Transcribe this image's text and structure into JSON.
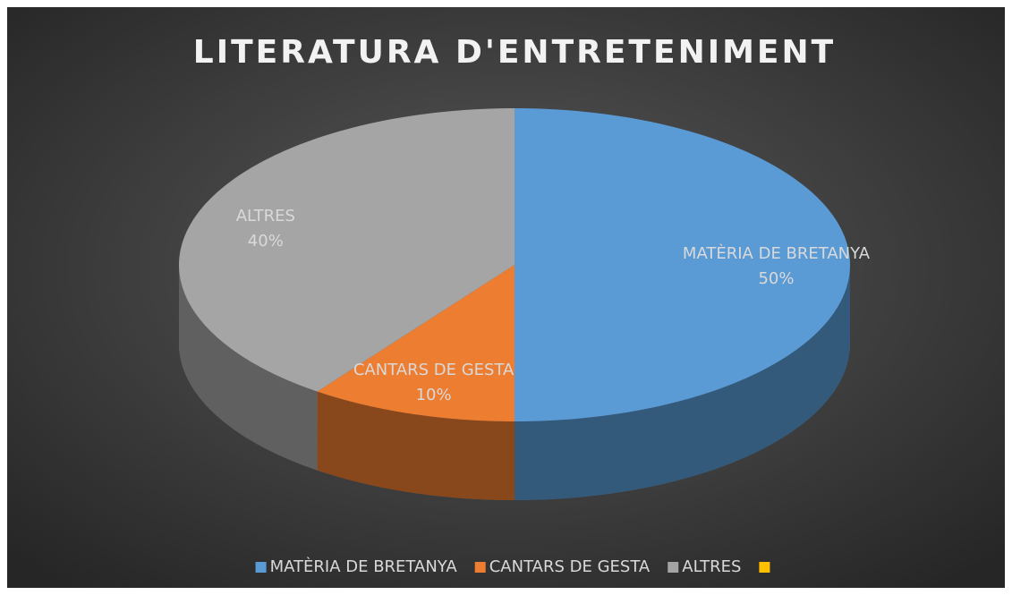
{
  "chart_data": {
    "type": "pie",
    "title": "LITERATURA D'ENTRETENIMENT",
    "categories": [
      "MATÈRIA DE BRETANYA",
      "CANTARS DE GESTA",
      "ALTRES",
      null
    ],
    "values": [
      50,
      10,
      40,
      0
    ],
    "value_labels": [
      "50%",
      "10%",
      "40%",
      null
    ],
    "colors": [
      "#5b9bd5",
      "#ed7d31",
      "#a5a5a5",
      "#ffc000"
    ],
    "legend": "bottom"
  }
}
